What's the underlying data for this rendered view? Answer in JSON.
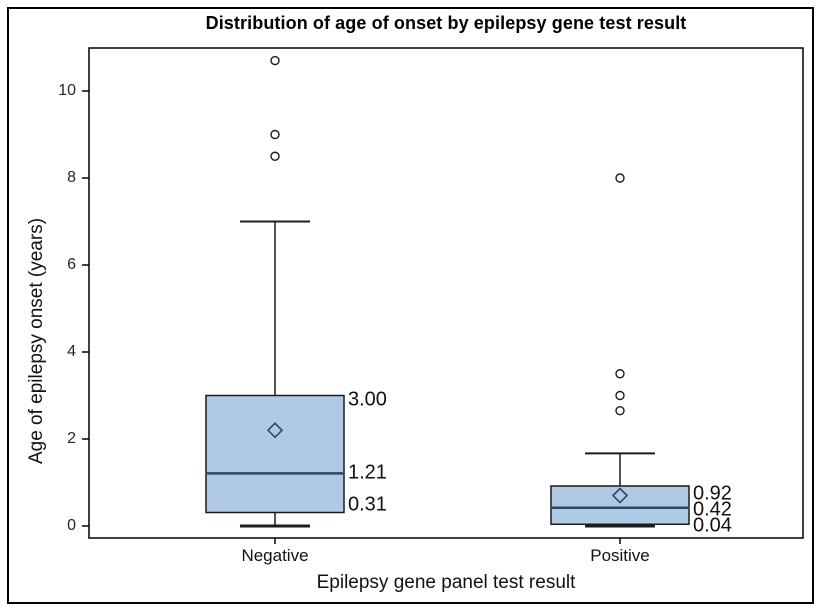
{
  "chart_data": {
    "type": "box",
    "title": "Distribution of age of onset by epilepsy gene test result",
    "xlabel": "Epilepsy gene panel test result",
    "ylabel": "Age of epilepsy onset (years)",
    "ylim": [
      -0.3,
      11.2
    ],
    "yticks": [
      0,
      2,
      4,
      6,
      8,
      10
    ],
    "grid": false,
    "legend": "none",
    "categories": [
      "Negative",
      "Positive"
    ],
    "series": [
      {
        "category": "Negative",
        "min": 0.0,
        "q1": 0.31,
        "median": 1.21,
        "q3": 3.0,
        "max_whisker": 7.0,
        "mean": 2.2,
        "outliers": [
          8.5,
          9.0,
          10.7
        ],
        "labels": [
          {
            "text": "3.00",
            "value": 3.0
          },
          {
            "text": "1.21",
            "value": 1.21
          },
          {
            "text": "0.31",
            "value": 0.31
          }
        ]
      },
      {
        "category": "Positive",
        "min": 0.0,
        "q1": 0.04,
        "median": 0.42,
        "q3": 0.92,
        "max_whisker": 1.67,
        "mean": 0.7,
        "outliers": [
          2.65,
          3.0,
          3.5,
          8.0
        ],
        "labels": [
          {
            "text": "0.92",
            "value": 0.92
          },
          {
            "text": "0.42",
            "value": 0.42
          },
          {
            "text": "0.04",
            "value": 0.04
          }
        ]
      }
    ],
    "colors": {
      "box_fill": "#b0c9e4",
      "box_border": "#1c1c1c",
      "median": "#2d4766",
      "whisker": "#1c1c1c",
      "outlier": "#1c1c1c",
      "mean_marker": "#2d4766",
      "frame": "#000000",
      "background": "#ffffff"
    }
  }
}
